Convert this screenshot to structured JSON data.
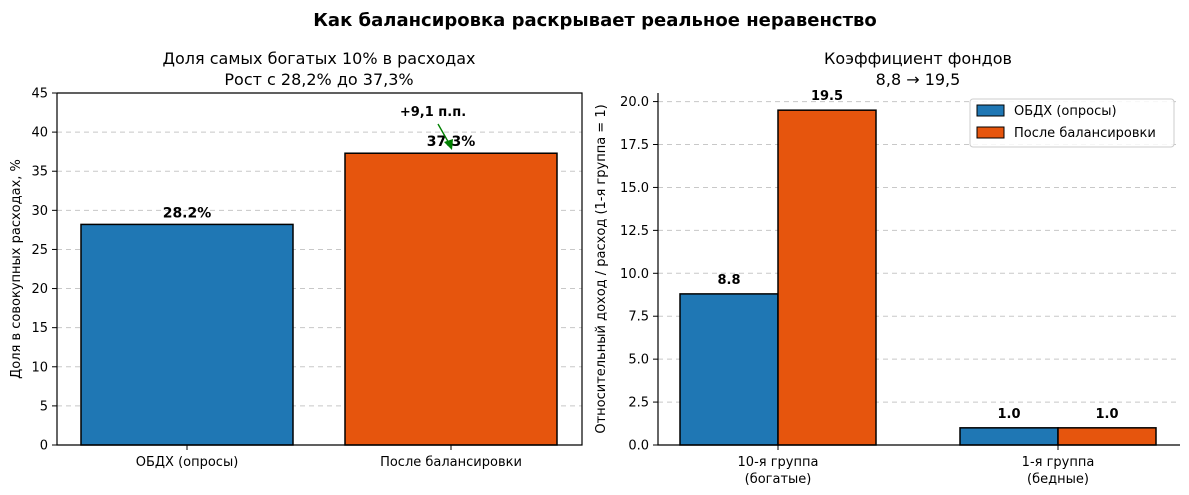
{
  "suptitle": "Как балансировка раскрывает реальное неравенство",
  "colors": {
    "blue": "#1f77b4",
    "orange": "#e6550d",
    "green": "#008000"
  },
  "chart_data": [
    {
      "type": "bar",
      "title_line1": "Доля самых богатых 10% в расходах",
      "title_line2": "Рост с 28,2% до 37,3%",
      "ylabel": "Доля в совокупных расходах, %",
      "xlabel": "",
      "ylim": [
        0,
        45
      ],
      "yticks": [
        0,
        5,
        10,
        15,
        20,
        25,
        30,
        35,
        40,
        45
      ],
      "ytick_labels": [
        "0",
        "5",
        "10",
        "15",
        "20",
        "25",
        "30",
        "35",
        "40",
        "45"
      ],
      "grid": "y-dashed",
      "categories": [
        "ОБДХ (опросы)",
        "После балансировки"
      ],
      "values": [
        28.2,
        37.3
      ],
      "value_labels": [
        "28.2%",
        "37.3%"
      ],
      "annotation": {
        "text": "+9,1 п.п.",
        "points_to": 1
      }
    },
    {
      "type": "bar",
      "title_line1": "Коэффициент фондов",
      "title_line2": "8,8 → 19,5",
      "ylabel": "Относительный доход / расход (1-я группа = 1)",
      "xlabel": "",
      "ylim": [
        0,
        20.5
      ],
      "yticks": [
        0,
        2.5,
        5,
        7.5,
        10,
        12.5,
        15,
        17.5,
        20
      ],
      "ytick_labels": [
        "0.0",
        "2.5",
        "5.0",
        "7.5",
        "10.0",
        "12.5",
        "15.0",
        "17.5",
        "20.0"
      ],
      "grid": "y-dashed",
      "categories": [
        {
          "line1": "10-я группа",
          "line2": "(богатые)"
        },
        {
          "line1": "1-я группа",
          "line2": "(бедные)"
        }
      ],
      "series": [
        {
          "name": "ОБДХ (опросы)",
          "values": [
            8.8,
            1.0
          ],
          "value_labels": [
            "8.8",
            "1.0"
          ]
        },
        {
          "name": "После балансировки",
          "values": [
            19.5,
            1.0
          ],
          "value_labels": [
            "19.5",
            "1.0"
          ]
        }
      ],
      "legend": "top-right"
    }
  ]
}
